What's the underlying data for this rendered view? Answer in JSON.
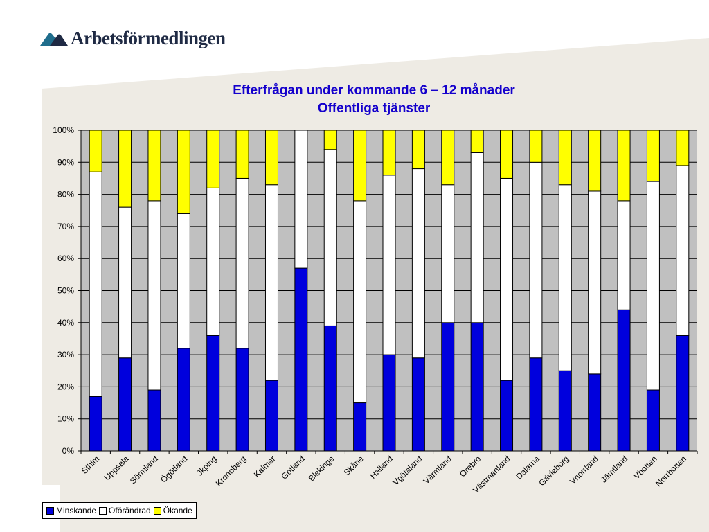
{
  "logo": {
    "text": "Arbetsförmedlingen",
    "icon": "arbetsformedlingen-logo-icon"
  },
  "colors": {
    "minskande": "#0000dd",
    "oforandrad": "#ffffff",
    "okande": "#ffff00",
    "plot_background": "#c0c0c0",
    "title": "#1400cc",
    "slide_panel": "#eeebe4"
  },
  "chart_data": {
    "type": "bar",
    "stacked": true,
    "percent": true,
    "title": "Efterfrågan under kommande 6 – 12 månader",
    "subtitle": "Offentliga tjänster",
    "xlabel": "",
    "ylabel": "",
    "ylim": [
      0,
      100
    ],
    "yticks": [
      "0%",
      "10%",
      "20%",
      "30%",
      "40%",
      "50%",
      "60%",
      "70%",
      "80%",
      "90%",
      "100%"
    ],
    "grid": true,
    "legend_position": "bottom-left",
    "categories": [
      "Sthlm",
      "Uppsala",
      "Sörmland",
      "Ögötland",
      "Jkping",
      "Kronoberg",
      "Kalmar",
      "Gotland",
      "Blekinge",
      "Skåne",
      "Halland",
      "Vgötaland",
      "Värmland",
      "Örebro",
      "Västmanland",
      "Dalarna",
      "Gävleborg",
      "Vnorrland",
      "Jämtland",
      "Vbotten",
      "Norrbotten"
    ],
    "series": [
      {
        "name": "Minskande",
        "values": [
          17,
          29,
          19,
          32,
          36,
          32,
          22,
          57,
          39,
          15,
          30,
          29,
          40,
          40,
          22,
          29,
          25,
          24,
          44,
          19,
          36
        ]
      },
      {
        "name": "Oförändrad",
        "values": [
          70,
          47,
          59,
          42,
          46,
          53,
          61,
          43,
          55,
          63,
          56,
          59,
          43,
          53,
          63,
          61,
          58,
          57,
          34,
          65,
          53
        ]
      },
      {
        "name": "Ökande",
        "values": [
          13,
          24,
          22,
          26,
          18,
          15,
          17,
          0,
          6,
          22,
          14,
          12,
          17,
          7,
          15,
          10,
          17,
          19,
          22,
          16,
          11
        ]
      }
    ]
  }
}
